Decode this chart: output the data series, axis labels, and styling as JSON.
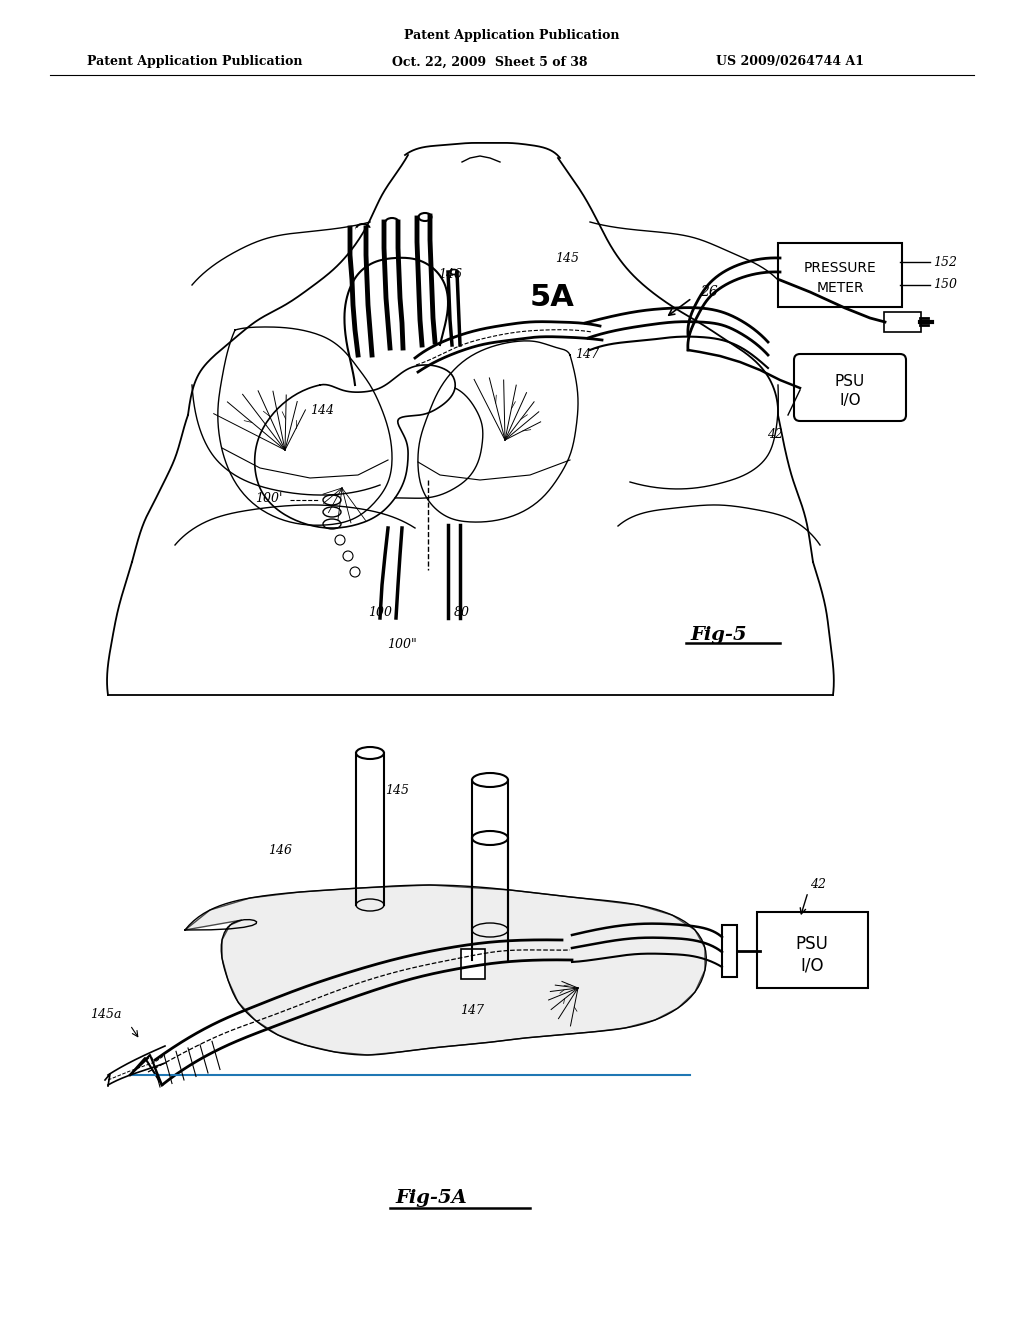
{
  "bg_color": "#ffffff",
  "header_left": "Patent Application Publication",
  "header_mid": "Oct. 22, 2009  Sheet 5 of 38",
  "header_right": "US 2009/0264744 A1",
  "fig_label_top": "Fig-5",
  "fig_label_bottom": "Fig-5A"
}
